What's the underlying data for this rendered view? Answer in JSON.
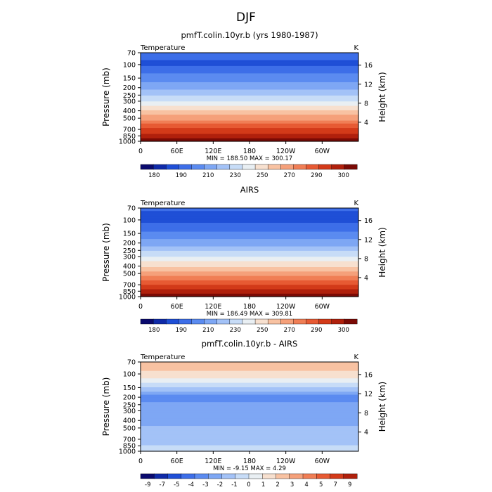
{
  "figure": {
    "title": "DJF"
  },
  "chart_data": [
    {
      "type": "heatmap",
      "title": "pmfT.colin.10yr.b (yrs 1980-1987)",
      "left_label": "Temperature",
      "right_label": "K",
      "ylabel": "Pressure (mb)",
      "ylabel_right": "Height (km)",
      "x_ticks": [
        "0",
        "60E",
        "120E",
        "180",
        "120W",
        "60W"
      ],
      "x_tick_values": [
        0,
        60,
        120,
        180,
        240,
        300
      ],
      "xlim": [
        0,
        360
      ],
      "y_ticks": [
        "70",
        "100",
        "150",
        "200",
        "250",
        "300",
        "400",
        "500",
        "700",
        "850",
        "1000"
      ],
      "y_tick_values": [
        70,
        100,
        150,
        200,
        250,
        300,
        400,
        500,
        700,
        850,
        1000
      ],
      "ylim": [
        70,
        1000
      ],
      "y_scale": "log",
      "height_ticks": [
        "4",
        "8",
        "12",
        "16"
      ],
      "height_tick_values": [
        4,
        8,
        12,
        16
      ],
      "stats": {
        "min_label": "MIN =",
        "min": "188.50",
        "max_label": "MAX =",
        "max": "300.17"
      },
      "levels_by_pressure": [
        {
          "p": 70,
          "v": 203
        },
        {
          "p": 100,
          "v": 200
        },
        {
          "p": 150,
          "v": 212
        },
        {
          "p": 200,
          "v": 221
        },
        {
          "p": 250,
          "v": 229
        },
        {
          "p": 300,
          "v": 237
        },
        {
          "p": 400,
          "v": 251
        },
        {
          "p": 500,
          "v": 262
        },
        {
          "p": 700,
          "v": 280
        },
        {
          "p": 850,
          "v": 290
        },
        {
          "p": 1000,
          "v": 298
        }
      ],
      "colorbar": {
        "labels": [
          "180",
          "190",
          "210",
          "230",
          "250",
          "270",
          "290",
          "300"
        ],
        "colors": [
          "#0a0a6e",
          "#0f2aa8",
          "#1f4fd6",
          "#3d6ee8",
          "#5b8bf0",
          "#7ea7f4",
          "#a3c2f7",
          "#c7dcf7",
          "#e9eff3",
          "#f7e0cf",
          "#f8c2a2",
          "#f5a07a",
          "#f07e55",
          "#e75a33",
          "#d33a19",
          "#b0200c",
          "#7a0a05"
        ]
      }
    },
    {
      "type": "heatmap",
      "title": "AIRS",
      "left_label": "Temperature",
      "right_label": "K",
      "ylabel": "Pressure (mb)",
      "ylabel_right": "Height (km)",
      "x_ticks": [
        "0",
        "60E",
        "120E",
        "180",
        "120W",
        "60W"
      ],
      "x_tick_values": [
        0,
        60,
        120,
        180,
        240,
        300
      ],
      "xlim": [
        0,
        360
      ],
      "y_ticks": [
        "70",
        "100",
        "150",
        "200",
        "250",
        "300",
        "400",
        "500",
        "700",
        "850",
        "1000"
      ],
      "y_tick_values": [
        70,
        100,
        150,
        200,
        250,
        300,
        400,
        500,
        700,
        850,
        1000
      ],
      "ylim": [
        70,
        1000
      ],
      "y_scale": "log",
      "height_ticks": [
        "4",
        "8",
        "12",
        "16"
      ],
      "height_tick_values": [
        4,
        8,
        12,
        16
      ],
      "stats": {
        "min_label": "MIN =",
        "min": "186.49",
        "max_label": "MAX =",
        "max": "309.81"
      },
      "levels_by_pressure": [
        {
          "p": 70,
          "v": 202
        },
        {
          "p": 100,
          "v": 198
        },
        {
          "p": 150,
          "v": 210
        },
        {
          "p": 200,
          "v": 219
        },
        {
          "p": 250,
          "v": 228
        },
        {
          "p": 300,
          "v": 236
        },
        {
          "p": 400,
          "v": 250
        },
        {
          "p": 500,
          "v": 261
        },
        {
          "p": 700,
          "v": 279
        },
        {
          "p": 850,
          "v": 289
        },
        {
          "p": 1000,
          "v": 296
        }
      ],
      "colorbar": {
        "labels": [
          "180",
          "190",
          "210",
          "230",
          "250",
          "270",
          "290",
          "300"
        ],
        "colors": [
          "#0a0a6e",
          "#0f2aa8",
          "#1f4fd6",
          "#3d6ee8",
          "#5b8bf0",
          "#7ea7f4",
          "#a3c2f7",
          "#c7dcf7",
          "#e9eff3",
          "#f7e0cf",
          "#f8c2a2",
          "#f5a07a",
          "#f07e55",
          "#e75a33",
          "#d33a19",
          "#b0200c",
          "#7a0a05"
        ]
      }
    },
    {
      "type": "heatmap",
      "title": "pmfT.colin.10yr.b - AIRS",
      "left_label": "Temperature",
      "right_label": "K",
      "ylabel": "Pressure (mb)",
      "ylabel_right": "Height (km)",
      "x_ticks": [
        "0",
        "60E",
        "120E",
        "180",
        "120W",
        "60W"
      ],
      "x_tick_values": [
        0,
        60,
        120,
        180,
        240,
        300
      ],
      "xlim": [
        0,
        360
      ],
      "y_ticks": [
        "70",
        "100",
        "150",
        "200",
        "250",
        "300",
        "400",
        "500",
        "700",
        "850",
        "1000"
      ],
      "y_tick_values": [
        70,
        100,
        150,
        200,
        250,
        300,
        400,
        500,
        700,
        850,
        1000
      ],
      "ylim": [
        70,
        1000
      ],
      "y_scale": "log",
      "height_ticks": [
        "4",
        "8",
        "12",
        "16"
      ],
      "height_tick_values": [
        4,
        8,
        12,
        16
      ],
      "stats": {
        "min_label": "MIN =",
        "min": "-9.15",
        "max_label": "MAX =",
        "max": "4.29"
      },
      "levels_by_pressure": [
        {
          "p": 70,
          "v": 3
        },
        {
          "p": 100,
          "v": 2
        },
        {
          "p": 150,
          "v": -1
        },
        {
          "p": 200,
          "v": -4
        },
        {
          "p": 250,
          "v": -3
        },
        {
          "p": 300,
          "v": -3
        },
        {
          "p": 400,
          "v": -3
        },
        {
          "p": 500,
          "v": -2
        },
        {
          "p": 700,
          "v": -2
        },
        {
          "p": 850,
          "v": -1
        },
        {
          "p": 1000,
          "v": -1
        }
      ],
      "colorbar": {
        "labels": [
          "-9",
          "-7",
          "-5",
          "-4",
          "-3",
          "-2",
          "-1",
          "0",
          "1",
          "2",
          "3",
          "4",
          "5",
          "7",
          "9"
        ],
        "colors": [
          "#0a0a6e",
          "#0f2aa8",
          "#1f4fd6",
          "#3d6ee8",
          "#5b8bf0",
          "#7ea7f4",
          "#a3c2f7",
          "#c7dcf7",
          "#e9eff3",
          "#f7e0cf",
          "#f8c2a2",
          "#f5a07a",
          "#f07e55",
          "#e75a33",
          "#d33a19",
          "#b0200c"
        ]
      }
    }
  ]
}
